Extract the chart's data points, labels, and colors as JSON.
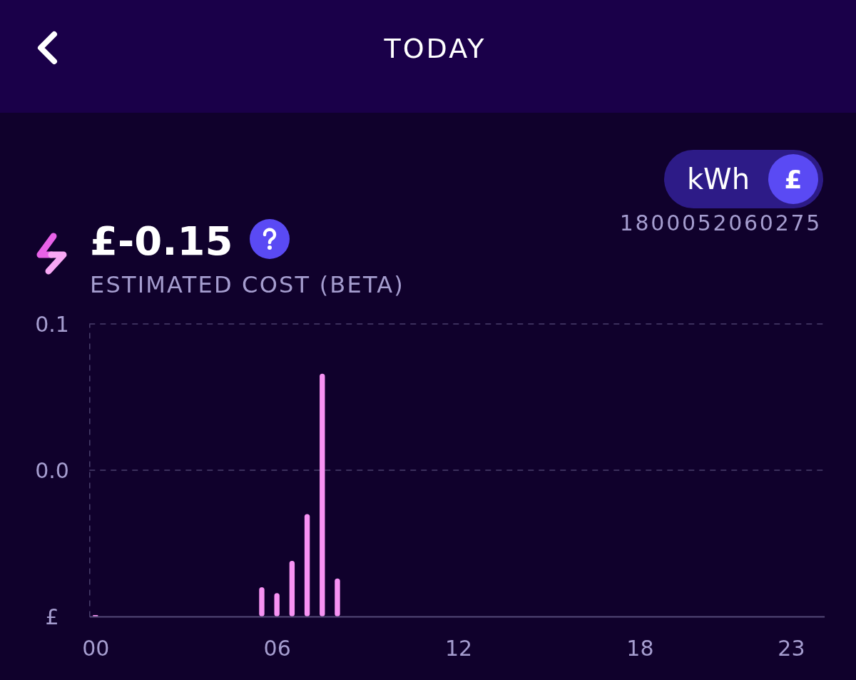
{
  "chart_data": {
    "type": "bar",
    "title": "TODAY",
    "subtitle": "ESTIMATED COST (BETA)",
    "annotations": [
      "£-0.15",
      "kWh",
      "£",
      "1800052060275"
    ],
    "x": [
      0,
      5.5,
      6,
      6.5,
      7,
      7.5,
      8
    ],
    "base": [
      -0.1,
      -0.1,
      -0.1,
      -0.1,
      -0.1,
      -0.1,
      -0.1
    ],
    "values": [
      0.001,
      0.02,
      0.016,
      0.038,
      0.07,
      0.166,
      0.026
    ],
    "color": "#f792f3",
    "xlim": [
      -0.2,
      24.1
    ],
    "xticks": [
      {
        "value": 0,
        "label": "00"
      },
      {
        "value": 6,
        "label": "06"
      },
      12,
      18,
      23
    ],
    "ylim": [
      -0.1,
      0.1
    ],
    "yticks": [
      {
        "value": -0.1,
        "label": "£"
      },
      {
        "value": 0,
        "label": "0.0"
      },
      0.1
    ],
    "ref_lines": [
      {
        "axis": "y",
        "value": 0,
        "color": "#4a3f6c",
        "line_style": "dashed"
      }
    ]
  }
}
